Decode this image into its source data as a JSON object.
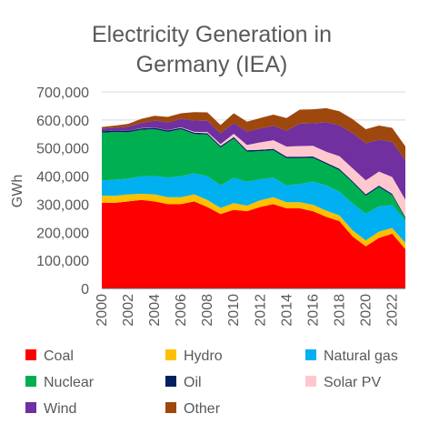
{
  "chart_data": {
    "type": "area",
    "stacked": true,
    "title_line1": "Electricity Generation in",
    "title_line2": "Germany (IEA)",
    "ylabel": "GWh",
    "xlabel": "",
    "ylim": [
      0,
      700000
    ],
    "xlim": [
      2000,
      2023
    ],
    "yticks": [
      0,
      100000,
      200000,
      300000,
      400000,
      500000,
      600000,
      700000
    ],
    "ytick_labels": [
      "0",
      "100,000",
      "200,000",
      "300,000",
      "400,000",
      "500,000",
      "600,000",
      "700,000"
    ],
    "xticks": [
      2000,
      2002,
      2004,
      2006,
      2008,
      2010,
      2012,
      2014,
      2016,
      2018,
      2020,
      2022
    ],
    "xtick_labels": [
      "2000",
      "2002",
      "2004",
      "2006",
      "2008",
      "2010",
      "2012",
      "2014",
      "2016",
      "2018",
      "2020",
      "2022"
    ],
    "grid": true,
    "legend_position": "bottom",
    "x": [
      2000,
      2001,
      2002,
      2003,
      2004,
      2005,
      2006,
      2007,
      2008,
      2009,
      2010,
      2011,
      2012,
      2013,
      2014,
      2015,
      2016,
      2017,
      2018,
      2019,
      2020,
      2021,
      2022,
      2023
    ],
    "series": [
      {
        "name": "Coal",
        "color": "#ff0000",
        "values": [
          305000,
          305000,
          310000,
          315000,
          310000,
          300000,
          300000,
          310000,
          290000,
          265000,
          280000,
          275000,
          290000,
          300000,
          285000,
          285000,
          275000,
          255000,
          240000,
          185000,
          150000,
          180000,
          195000,
          140000
        ]
      },
      {
        "name": "Hydro",
        "color": "#ffc000",
        "values": [
          25000,
          25000,
          25000,
          22000,
          25000,
          25000,
          25000,
          25000,
          25000,
          22000,
          24000,
          20000,
          24000,
          25000,
          22000,
          22000,
          23000,
          22000,
          20000,
          22000,
          21000,
          22000,
          20000,
          22000
        ]
      },
      {
        "name": "Natural gas",
        "color": "#00b0f0",
        "values": [
          55000,
          57000,
          56000,
          63000,
          65000,
          70000,
          75000,
          75000,
          85000,
          80000,
          90000,
          85000,
          75000,
          70000,
          60000,
          65000,
          82000,
          90000,
          85000,
          95000,
          95000,
          90000,
          82000,
          80000
        ]
      },
      {
        "name": "Nuclear",
        "color": "#00b050",
        "values": [
          170000,
          170000,
          165000,
          165000,
          167000,
          163000,
          167000,
          140000,
          148000,
          135000,
          140000,
          107000,
          100000,
          97000,
          97000,
          92000,
          85000,
          76000,
          76000,
          75000,
          64000,
          69000,
          35000,
          7000
        ]
      },
      {
        "name": "Oil",
        "color": "#002060",
        "values": [
          5000,
          5000,
          5000,
          5000,
          5000,
          5000,
          5000,
          5000,
          5000,
          5000,
          5000,
          5000,
          5000,
          5000,
          5000,
          5000,
          5000,
          5000,
          5000,
          5000,
          5000,
          5000,
          5000,
          5000
        ]
      },
      {
        "name": "Solar PV",
        "color": "#ffc7ce",
        "values": [
          0,
          0,
          0,
          1000,
          1000,
          1000,
          2000,
          3000,
          4000,
          7000,
          12000,
          19000,
          26000,
          31000,
          36000,
          38000,
          38000,
          39000,
          45000,
          46000,
          50000,
          50000,
          60000,
          62000
        ]
      },
      {
        "name": "Wind",
        "color": "#7030a0",
        "values": [
          9000,
          10000,
          15000,
          18000,
          25000,
          27000,
          30000,
          40000,
          40000,
          38000,
          38000,
          48000,
          50000,
          51000,
          57000,
          80000,
          80000,
          105000,
          110000,
          125000,
          132000,
          114000,
          125000,
          140000
        ]
      },
      {
        "name": "Other",
        "color": "#9e480e",
        "values": [
          6000,
          8000,
          10000,
          15000,
          17000,
          20000,
          20000,
          30000,
          30000,
          30000,
          35000,
          35000,
          37000,
          40000,
          45000,
          50000,
          50000,
          50000,
          50000,
          50000,
          50000,
          50000,
          50000,
          50000
        ]
      }
    ]
  }
}
